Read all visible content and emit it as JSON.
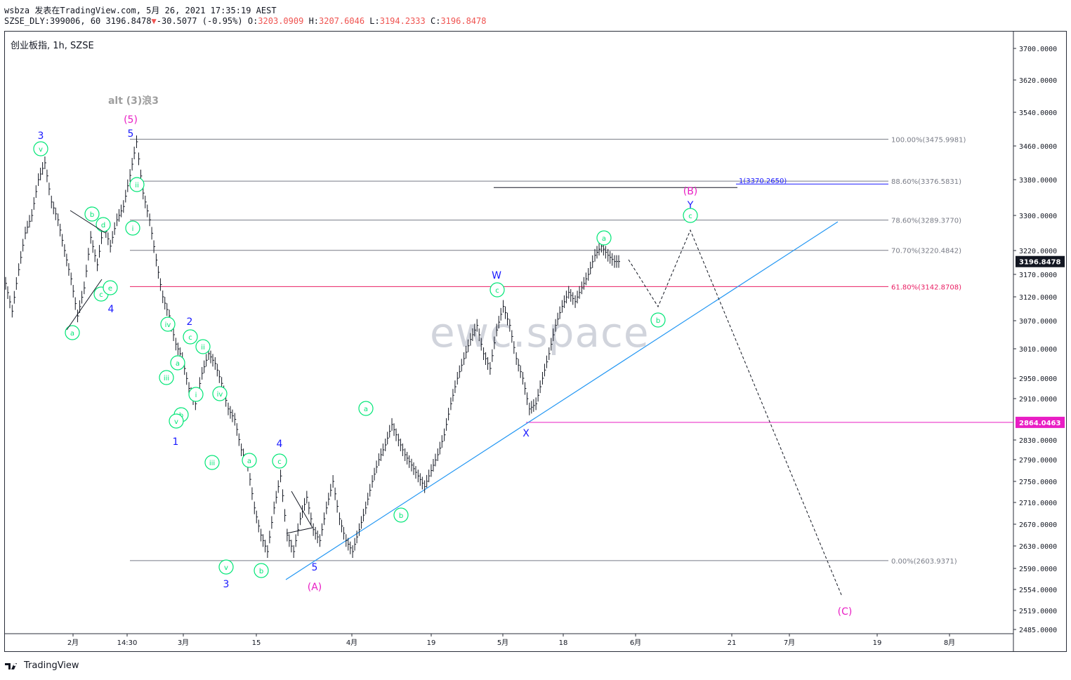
{
  "header": {
    "line1": "wsbza 发表在TradingView.com, 5月 26, 2021 17:35:19 AEST",
    "symbol": "SZSE_DLY:399006, 60",
    "last": "3196.8478",
    "arrow": "▼",
    "change": "-30.5077 (-0.95%)",
    "o_label": "O:",
    "o": "3203.0909",
    "h_label": "H:",
    "h": "3207.6046",
    "l_label": "L:",
    "l": "3194.2333",
    "c_label": "C:",
    "c": "3196.8478"
  },
  "chart_title": "创业板指, 1h, SZSE",
  "watermark": "ewc.space",
  "footer": {
    "brand": "TradingView",
    "logo_icon": "tradingview-logo-icon"
  },
  "colors": {
    "fib_gray": "#787b86",
    "fib_pink": "#e91e63",
    "trend": "#2196f3",
    "wave_green": "#00e676",
    "wave_blue": "#1a1aff",
    "wave_magenta": "#e91ec4",
    "support": "#e91ec4"
  },
  "chart_data": {
    "type": "line",
    "title": "创业板指, 1h, SZSE",
    "ylim": [
      2485,
      3700
    ],
    "price_axis": [
      "3700.0000",
      "3620.0000",
      "3540.0000",
      "3460.0000",
      "3380.0000",
      "3300.0000",
      "3220.0000",
      "3170.0000",
      "3120.0000",
      "3070.0000",
      "3010.0000",
      "2950.0000",
      "2910.0000",
      "2830.0000",
      "2790.0000",
      "2750.0000",
      "2710.0000",
      "2670.0000",
      "2630.0000",
      "2590.0000",
      "2554.0000",
      "2519.0000",
      "2485.0000"
    ],
    "price_tags": [
      {
        "value": 3196.8478,
        "text": "3196.8478",
        "color": "#131722"
      },
      {
        "value": 2864.0463,
        "text": "2864.0463",
        "color": "#e91ec4"
      }
    ],
    "time_axis": [
      "2月",
      "14:30",
      "3月",
      "15",
      "4月",
      "19",
      "5月",
      "18",
      "6月",
      "21",
      "7月",
      "19",
      "8月"
    ],
    "fib_levels": [
      {
        "ratio": "100.00%",
        "price": 3475.9981,
        "text": "100.00%(3475.9981)",
        "color": "#787b86"
      },
      {
        "ratio": "88.60%",
        "price": 3376.5831,
        "text": "88.60%(3376.5831)",
        "color": "#787b86"
      },
      {
        "ratio": "78.60%",
        "price": 3289.377,
        "text": "78.60%(3289.3770)",
        "color": "#787b86"
      },
      {
        "ratio": "70.70%",
        "price": 3220.4842,
        "text": "70.70%(3220.4842)",
        "color": "#787b86"
      },
      {
        "ratio": "61.80%",
        "price": 3142.8708,
        "text": "61.80%(3142.8708)",
        "color": "#e91e63"
      },
      {
        "ratio": "0.00%",
        "price": 2603.9371,
        "text": "0.00%(2603.9371)",
        "color": "#787b86"
      }
    ],
    "target_line": {
      "price": 3370.265,
      "text": "1(3370.2650)"
    },
    "support_line": {
      "price": 2864.0463
    },
    "series": [
      {
        "values": [
          3150,
          3090,
          3180,
          3260,
          3300,
          3380,
          3420,
          3330,
          3290,
          3220,
          3160,
          3080,
          3140,
          3250,
          3190,
          3280,
          3230,
          3290,
          3320,
          3390,
          3470,
          3350,
          3290,
          3200,
          3120,
          3080,
          3020,
          2990,
          2930,
          2900,
          2960,
          3000,
          2980,
          2940,
          2890,
          2870,
          2810,
          2780,
          2700,
          2650,
          2620,
          2700,
          2760,
          2650,
          2620,
          2680,
          2720,
          2660,
          2640,
          2700,
          2750,
          2680,
          2640,
          2620,
          2660,
          2700,
          2750,
          2790,
          2820,
          2860,
          2830,
          2800,
          2780,
          2760,
          2740,
          2770,
          2800,
          2840,
          2900,
          2950,
          2990,
          3030,
          3060,
          3000,
          2970,
          3050,
          3100,
          3060,
          2990,
          2950,
          2890,
          2900,
          2950,
          3000,
          3060,
          3100,
          3130,
          3110,
          3140,
          3170,
          3210,
          3230,
          3210,
          3197
        ]
      }
    ],
    "wave_labels": [
      {
        "text": "alt (3)浪3",
        "color": "#9e9e9e"
      },
      {
        "text": "(5)",
        "color": "#e91ec4"
      },
      {
        "text": "5",
        "color": "#1a1aff"
      },
      {
        "text": "3",
        "color": "#1a1aff"
      },
      {
        "text": "4",
        "color": "#1a1aff"
      },
      {
        "text": "2",
        "color": "#1a1aff"
      },
      {
        "text": "1",
        "color": "#1a1aff"
      },
      {
        "text": "4",
        "color": "#1a1aff"
      },
      {
        "text": "3",
        "color": "#1a1aff"
      },
      {
        "text": "5",
        "color": "#1a1aff"
      },
      {
        "text": "(A)",
        "color": "#e91ec4"
      },
      {
        "text": "W",
        "color": "#1a1aff"
      },
      {
        "text": "X",
        "color": "#1a1aff"
      },
      {
        "text": "(B)",
        "color": "#e91ec4"
      },
      {
        "text": "Y",
        "color": "#1a1aff"
      },
      {
        "text": "(C)",
        "color": "#e91ec4"
      }
    ],
    "wave_circles": [
      "v",
      "ii",
      "i",
      "b",
      "d",
      "c",
      "e",
      "a",
      "iv",
      "c",
      "ii",
      "a",
      "iii",
      "i",
      "iv",
      "b",
      "v",
      "iii",
      "a",
      "c",
      "v",
      "b",
      "a",
      "b",
      "c",
      "a",
      "b",
      "c"
    ]
  }
}
